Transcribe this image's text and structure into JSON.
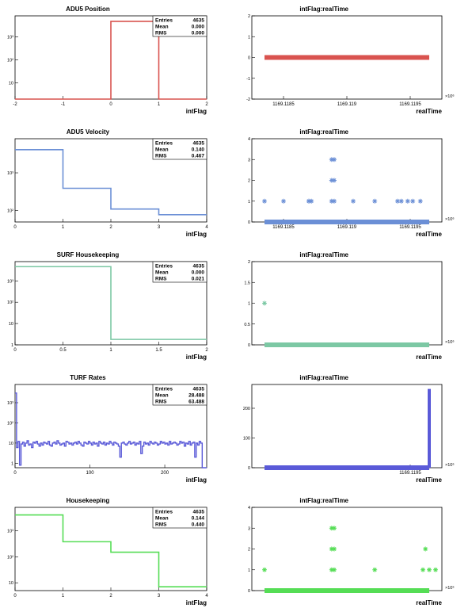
{
  "panels": [
    {
      "title": "ADU5 Position",
      "xlabel": "intFlag",
      "stats": {
        "entries_label": "Entries",
        "entries": "4635",
        "mean_label": "Mean",
        "mean": "0.000",
        "rms_label": "RMS",
        "rms": "0.000"
      }
    },
    {
      "title": "ADU5 Velocity",
      "xlabel": "intFlag",
      "stats": {
        "entries_label": "Entries",
        "entries": "4635",
        "mean_label": "Mean",
        "mean": "0.140",
        "rms_label": "RMS",
        "rms": "0.467"
      }
    },
    {
      "title": "SURF Housekeeping",
      "xlabel": "intFlag",
      "stats": {
        "entries_label": "Entries",
        "entries": "4635",
        "mean_label": "Mean",
        "mean": "0.000",
        "rms_label": "RMS",
        "rms": "0.021"
      }
    },
    {
      "title": "TURF Rates",
      "xlabel": "intFlag",
      "stats": {
        "entries_label": "Entries",
        "entries": "4635",
        "mean_label": "Mean",
        "mean": "28.488",
        "rms_label": "RMS",
        "rms": "63.488"
      }
    },
    {
      "title": "Housekeeping",
      "xlabel": "intFlag",
      "stats": {
        "entries_label": "Entries",
        "entries": "4635",
        "mean_label": "Mean",
        "mean": "0.144",
        "rms_label": "RMS",
        "rms": "0.440"
      }
    }
  ],
  "scatter_panels": [
    {
      "title": "intFlag:realTime",
      "xlabel": "realTime"
    },
    {
      "title": "intFlag:realTime",
      "xlabel": "realTime"
    },
    {
      "title": "intFlag:realTime",
      "xlabel": "realTime"
    },
    {
      "title": "intFlag:realTime",
      "xlabel": "realTime"
    },
    {
      "title": "intFlag:realTime",
      "xlabel": "realTime"
    }
  ],
  "chart_data": [
    {
      "type": "bar",
      "subtype": "histogram",
      "title": "ADU5 Position",
      "xlabel": "intFlag",
      "ylabel": "",
      "color": "#d9534f",
      "xlim": [
        -2,
        2
      ],
      "ylim_log": [
        2,
        8000
      ],
      "log_y": true,
      "xticks": [
        "-2",
        "-1",
        "0",
        "1",
        "2"
      ],
      "xtick_values": [
        -2,
        -1,
        0,
        1,
        2
      ],
      "yticks": [
        "10",
        "10²",
        "10³"
      ],
      "ytick_values": [
        10,
        100,
        1000
      ],
      "bins": [
        {
          "x0": -2,
          "x1": 0,
          "value": 0
        },
        {
          "x0": 0,
          "x1": 1,
          "value": 4635
        },
        {
          "x0": 1,
          "x1": 2,
          "value": 0
        }
      ]
    },
    {
      "type": "scatter",
      "title": "intFlag:realTime",
      "xlabel": "realTime",
      "ylabel": "intFlag",
      "color": "#d9534f",
      "xlim": [
        1169.11825,
        1169.11975
      ],
      "ylim": [
        -2,
        2
      ],
      "xticks": [
        "1169.1185",
        "1169.119",
        "1169.1195"
      ],
      "xtick_values": [
        1169.1185,
        1169.119,
        1169.1195
      ],
      "yticks": [
        "-2",
        "-1",
        "0",
        "1",
        "2"
      ],
      "ytick_values": [
        -2,
        -1,
        0,
        1,
        2
      ],
      "x_exponent": "×10⁶",
      "band": {
        "x0": 1169.11835,
        "x1": 1169.11965,
        "y": 0
      },
      "points": []
    },
    {
      "type": "bar",
      "subtype": "histogram",
      "title": "ADU5 Velocity",
      "xlabel": "intFlag",
      "ylabel": "",
      "color": "#6b8fd6",
      "xlim": [
        0,
        4
      ],
      "ylim_log": [
        50,
        8000
      ],
      "log_y": true,
      "xticks": [
        "0",
        "1",
        "2",
        "3",
        "4"
      ],
      "xtick_values": [
        0,
        1,
        2,
        3,
        4
      ],
      "yticks": [
        "10²",
        "10³"
      ],
      "ytick_values": [
        100,
        1000
      ],
      "bins": [
        {
          "x0": 0,
          "x1": 1,
          "value": 4100
        },
        {
          "x0": 1,
          "x1": 2,
          "value": 390
        },
        {
          "x0": 2,
          "x1": 3,
          "value": 110
        },
        {
          "x0": 3,
          "x1": 4,
          "value": 78
        }
      ]
    },
    {
      "type": "scatter",
      "title": "intFlag:realTime",
      "xlabel": "realTime",
      "ylabel": "intFlag",
      "color": "#6b8fd6",
      "xlim": [
        1169.11825,
        1169.11975
      ],
      "ylim": [
        0,
        4
      ],
      "xticks": [
        "1169.1185",
        "1169.119",
        "1169.1195"
      ],
      "xtick_values": [
        1169.1185,
        1169.119,
        1169.1195
      ],
      "yticks": [
        "0",
        "1",
        "2",
        "3",
        "4"
      ],
      "ytick_values": [
        0,
        1,
        2,
        3,
        4
      ],
      "x_exponent": "×10⁶",
      "band": {
        "x0": 1169.11835,
        "x1": 1169.11965,
        "y": 0
      },
      "points": [
        {
          "x": 1169.11835,
          "y": 1
        },
        {
          "x": 1169.1185,
          "y": 1
        },
        {
          "x": 1169.11888,
          "y": 1
        },
        {
          "x": 1169.11888,
          "y": 2
        },
        {
          "x": 1169.11888,
          "y": 3
        },
        {
          "x": 1169.1189,
          "y": 1
        },
        {
          "x": 1169.1189,
          "y": 2
        },
        {
          "x": 1169.1189,
          "y": 3
        },
        {
          "x": 1169.11922,
          "y": 1
        },
        {
          "x": 1169.1187,
          "y": 1
        },
        {
          "x": 1169.11872,
          "y": 1
        },
        {
          "x": 1169.1187,
          "y": 1
        },
        {
          "x": 1169.11905,
          "y": 1
        },
        {
          "x": 1169.1194,
          "y": 1
        },
        {
          "x": 1169.11943,
          "y": 1
        },
        {
          "x": 1169.11948,
          "y": 1
        },
        {
          "x": 1169.11952,
          "y": 1
        },
        {
          "x": 1169.11958,
          "y": 1
        }
      ]
    },
    {
      "type": "bar",
      "subtype": "histogram",
      "title": "SURF Housekeeping",
      "xlabel": "intFlag",
      "ylabel": "",
      "color": "#7cc8a4",
      "xlim": [
        0,
        2
      ],
      "ylim_log": [
        1,
        8000
      ],
      "log_y": true,
      "xticks": [
        "0",
        "0.5",
        "1",
        "1.5",
        "2"
      ],
      "xtick_values": [
        0,
        0.5,
        1,
        1.5,
        2
      ],
      "yticks": [
        "1",
        "10",
        "10²",
        "10³"
      ],
      "ytick_values": [
        1,
        10,
        100,
        1000
      ],
      "bins": [
        {
          "x0": 0,
          "x1": 1,
          "value": 4634
        },
        {
          "x0": 1,
          "x1": 2,
          "value": 1.8
        }
      ]
    },
    {
      "type": "scatter",
      "title": "intFlag:realTime",
      "xlabel": "realTime",
      "ylabel": "intFlag",
      "color": "#7cc8a4",
      "xlim": [
        1169.11825,
        1169.11975
      ],
      "ylim": [
        0,
        2
      ],
      "xticks": [],
      "xtick_values": [],
      "yticks": [
        "0",
        "0.5",
        "1",
        "1.5",
        "2"
      ],
      "ytick_values": [
        0,
        0.5,
        1,
        1.5,
        2
      ],
      "x_exponent": "×10⁶",
      "band": {
        "x0": 1169.11835,
        "x1": 1169.11965,
        "y": 0
      },
      "points": [
        {
          "x": 1169.11835,
          "y": 1
        }
      ]
    },
    {
      "type": "bar",
      "subtype": "histogram",
      "title": "TURF Rates",
      "xlabel": "intFlag",
      "ylabel": "",
      "color": "#5a5ad8",
      "xlim": [
        0,
        256
      ],
      "ylim_log": [
        0.6,
        8000
      ],
      "log_y": true,
      "xticks": [
        "0",
        "100",
        "200"
      ],
      "xtick_values": [
        0,
        100,
        200
      ],
      "yticks": [
        "1",
        "10",
        "10²",
        "10³"
      ],
      "ytick_values": [
        1,
        10,
        100,
        1000
      ],
      "noise_values": [
        10,
        6,
        12,
        8,
        9,
        11,
        7,
        10,
        13,
        8,
        9,
        6,
        11,
        10,
        12,
        9,
        7,
        10,
        8,
        11,
        10,
        9,
        12,
        8,
        7,
        10,
        11,
        9,
        13,
        10,
        8,
        9,
        10,
        7,
        12,
        11,
        9,
        10,
        8,
        10,
        11,
        9,
        12,
        10,
        8,
        7,
        11,
        10,
        9,
        12,
        10,
        8,
        11,
        9,
        10,
        7,
        12,
        10,
        9,
        11,
        8,
        10,
        9,
        12,
        10,
        8,
        11,
        10,
        9,
        7,
        12,
        10,
        11,
        9,
        8,
        10,
        12,
        9,
        10,
        11,
        8,
        10,
        9,
        12,
        10,
        7,
        11,
        9,
        10,
        8,
        12,
        10,
        9,
        11,
        10,
        8,
        9,
        12,
        10,
        11,
        9,
        10,
        8,
        12,
        9,
        10,
        11,
        10,
        8,
        9,
        12,
        10,
        11,
        7,
        10,
        9,
        12,
        8,
        10,
        11,
        9,
        10,
        8,
        12,
        10,
        9,
        11,
        10
      ],
      "noise_bin_width": 2,
      "first_bin": 3000,
      "dips": [
        {
          "bin": 3,
          "value": 0.8
        },
        {
          "bin": 70,
          "value": 2
        },
        {
          "bin": 84,
          "value": 3
        },
        {
          "bin": 120,
          "value": 2
        }
      ],
      "tail_start": 250,
      "tail_value": 0.6
    },
    {
      "type": "scatter",
      "title": "intFlag:realTime",
      "xlabel": "realTime",
      "ylabel": "intFlag",
      "color": "#5a5ad8",
      "xlim": [
        1169.11825,
        1169.11975
      ],
      "ylim": [
        0,
        280
      ],
      "xticks": [
        "1169.1195"
      ],
      "xtick_values": [
        1169.1195
      ],
      "yticks": [
        "0",
        "100",
        "200"
      ],
      "ytick_values": [
        0,
        100,
        200
      ],
      "x_exponent": "×10⁶",
      "band": {
        "x0": 1169.11835,
        "x1": 1169.11965,
        "y": 0
      },
      "spike": {
        "x": 1169.11965,
        "y0": 0,
        "y1": 265
      },
      "points": []
    },
    {
      "type": "bar",
      "subtype": "histogram",
      "title": "Housekeeping",
      "xlabel": "intFlag",
      "ylabel": "",
      "color": "#55dd55",
      "xlim": [
        0,
        4
      ],
      "ylim_log": [
        5,
        8000
      ],
      "log_y": true,
      "xticks": [
        "0",
        "1",
        "2",
        "3",
        "4"
      ],
      "xtick_values": [
        0,
        1,
        2,
        3,
        4
      ],
      "yticks": [
        "10",
        "10²",
        "10³"
      ],
      "ytick_values": [
        10,
        100,
        1000
      ],
      "bins": [
        {
          "x0": 0,
          "x1": 1,
          "value": 4100
        },
        {
          "x0": 1,
          "x1": 2,
          "value": 380
        },
        {
          "x0": 2,
          "x1": 3,
          "value": 150
        },
        {
          "x0": 3,
          "x1": 4,
          "value": 7
        }
      ]
    },
    {
      "type": "scatter",
      "title": "intFlag:realTime",
      "xlabel": "realTime",
      "ylabel": "intFlag",
      "color": "#55dd55",
      "xlim": [
        1169.11825,
        1169.11975
      ],
      "ylim": [
        0,
        4
      ],
      "xticks": [],
      "xtick_values": [],
      "yticks": [
        "0",
        "1",
        "2",
        "3",
        "4"
      ],
      "ytick_values": [
        0,
        1,
        2,
        3,
        4
      ],
      "x_exponent": "×10⁶",
      "band": {
        "x0": 1169.11835,
        "x1": 1169.11965,
        "y": 0
      },
      "points": [
        {
          "x": 1169.11835,
          "y": 1
        },
        {
          "x": 1169.11888,
          "y": 1
        },
        {
          "x": 1169.11888,
          "y": 2
        },
        {
          "x": 1169.11888,
          "y": 3
        },
        {
          "x": 1169.1189,
          "y": 1
        },
        {
          "x": 1169.1189,
          "y": 2
        },
        {
          "x": 1169.1189,
          "y": 3
        },
        {
          "x": 1169.11922,
          "y": 1
        },
        {
          "x": 1169.1196,
          "y": 1
        },
        {
          "x": 1169.11962,
          "y": 2
        },
        {
          "x": 1169.11965,
          "y": 1
        },
        {
          "x": 1169.1197,
          "y": 1
        }
      ]
    }
  ]
}
